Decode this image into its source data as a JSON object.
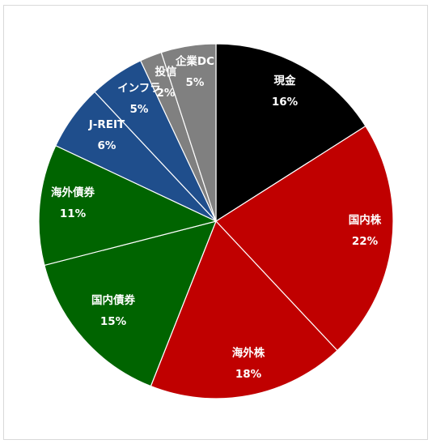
{
  "chart_data": {
    "type": "pie",
    "start_angle_deg": 0,
    "direction": "clockwise",
    "slice_border_color": "#ffffff",
    "slices": [
      {
        "label": "現金",
        "value": 16,
        "value_label": "16%",
        "color": "#000000"
      },
      {
        "label": "国内株",
        "value": 22,
        "value_label": "22%",
        "color": "#c00000"
      },
      {
        "label": "海外株",
        "value": 18,
        "value_label": "18%",
        "color": "#c00000"
      },
      {
        "label": "国内債券",
        "value": 15,
        "value_label": "15%",
        "color": "#006400"
      },
      {
        "label": "海外債券",
        "value": 11,
        "value_label": "11%",
        "color": "#006400"
      },
      {
        "label": "J-REIT",
        "value": 6,
        "value_label": "6%",
        "color": "#1f4e8c"
      },
      {
        "label": "インフラ",
        "value": 5,
        "value_label": "5%",
        "color": "#1f4e8c"
      },
      {
        "label": "投信",
        "value": 2,
        "value_label": "2%",
        "color": "#808080"
      },
      {
        "label": "企業DC",
        "value": 5,
        "value_label": "5%",
        "color": "#808080"
      }
    ]
  }
}
